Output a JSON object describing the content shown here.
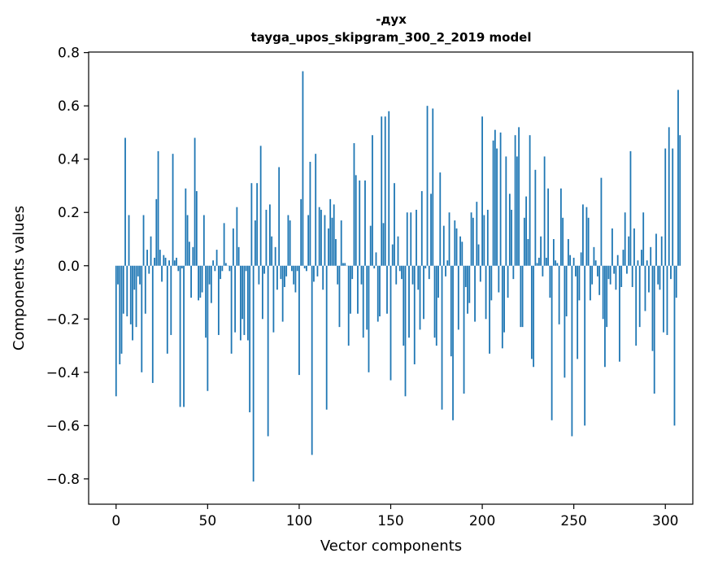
{
  "chart_data": {
    "type": "bar",
    "title": "-дух",
    "subtitle": "tayga_upos_skipgram_300_2_2019 model",
    "xlabel": "Vector components",
    "ylabel": "Components values",
    "xlim": [
      -15,
      315
    ],
    "ylim": [
      -0.895,
      0.802
    ],
    "xticks": [
      0,
      50,
      100,
      150,
      200,
      250,
      300
    ],
    "xtick_labels": [
      "0",
      "50",
      "100",
      "150",
      "200",
      "250",
      "300"
    ],
    "yticks": [
      -0.8,
      -0.6,
      -0.4,
      -0.2,
      0.0,
      0.2,
      0.4,
      0.6,
      0.8
    ],
    "ytick_labels": [
      "−0.8",
      "−0.6",
      "−0.4",
      "−0.2",
      "0.0",
      "0.2",
      "0.4",
      "0.6",
      "0.8"
    ],
    "bar_color": "#1f77b4",
    "values": [
      -0.49,
      -0.07,
      -0.37,
      -0.33,
      -0.18,
      0.48,
      -0.19,
      0.19,
      -0.22,
      -0.28,
      -0.09,
      -0.23,
      -0.04,
      -0.07,
      -0.4,
      0.19,
      -0.18,
      0.06,
      -0.03,
      0.11,
      -0.44,
      0.03,
      0.25,
      0.43,
      0.06,
      -0.06,
      0.04,
      0.03,
      -0.33,
      0.02,
      -0.26,
      0.42,
      0.02,
      0.03,
      -0.02,
      -0.53,
      -0.01,
      -0.53,
      0.29,
      0.19,
      0.09,
      -0.12,
      0.07,
      0.48,
      0.28,
      -0.13,
      -0.12,
      -0.1,
      0.19,
      -0.27,
      -0.47,
      -0.07,
      -0.14,
      0.02,
      -0.02,
      0.06,
      -0.26,
      -0.05,
      -0.02,
      0.16,
      0.01,
      0.0,
      -0.02,
      -0.33,
      0.14,
      -0.25,
      0.22,
      0.07,
      -0.28,
      -0.2,
      -0.26,
      -0.02,
      -0.28,
      -0.55,
      0.31,
      -0.81,
      0.17,
      0.31,
      -0.07,
      0.45,
      -0.2,
      -0.03,
      0.21,
      -0.64,
      0.23,
      0.11,
      -0.25,
      0.07,
      -0.09,
      0.37,
      -0.05,
      -0.21,
      -0.08,
      -0.04,
      0.19,
      0.17,
      -0.02,
      -0.07,
      -0.1,
      -0.02,
      -0.41,
      0.25,
      0.73,
      -0.01,
      -0.02,
      0.19,
      0.39,
      -0.71,
      -0.06,
      0.42,
      -0.04,
      0.22,
      0.21,
      -0.09,
      0.19,
      -0.54,
      0.14,
      0.25,
      0.18,
      0.23,
      0.1,
      -0.07,
      -0.23,
      0.17,
      0.01,
      0.01,
      0.0,
      -0.3,
      -0.18,
      -0.05,
      0.46,
      0.34,
      -0.18,
      0.32,
      -0.07,
      -0.27,
      0.32,
      -0.24,
      -0.4,
      0.15,
      0.49,
      -0.01,
      0.05,
      -0.21,
      -0.19,
      0.56,
      0.16,
      0.56,
      -0.18,
      0.58,
      -0.43,
      0.08,
      0.31,
      -0.07,
      0.11,
      -0.02,
      -0.05,
      -0.3,
      -0.49,
      0.2,
      -0.27,
      0.2,
      -0.07,
      -0.37,
      0.21,
      -0.09,
      -0.24,
      0.28,
      -0.2,
      -0.01,
      0.6,
      -0.05,
      0.27,
      0.59,
      -0.27,
      -0.3,
      -0.12,
      0.35,
      -0.54,
      0.15,
      -0.04,
      0.02,
      0.2,
      -0.34,
      -0.58,
      0.17,
      0.14,
      -0.24,
      0.11,
      0.09,
      -0.48,
      -0.08,
      -0.18,
      -0.14,
      0.2,
      0.18,
      -0.21,
      0.24,
      0.08,
      -0.06,
      0.56,
      0.19,
      -0.2,
      0.21,
      -0.33,
      -0.13,
      0.47,
      0.51,
      0.44,
      -0.1,
      0.5,
      -0.31,
      -0.25,
      0.41,
      -0.12,
      0.27,
      0.21,
      -0.05,
      0.49,
      0.41,
      0.52,
      -0.23,
      -0.23,
      0.18,
      0.26,
      0.1,
      0.49,
      -0.35,
      -0.38,
      0.36,
      0.01,
      0.03,
      0.11,
      -0.04,
      0.41,
      0.03,
      0.29,
      -0.12,
      -0.58,
      0.1,
      0.02,
      0.01,
      -0.22,
      0.29,
      0.18,
      -0.42,
      -0.19,
      0.1,
      0.04,
      -0.64,
      0.03,
      -0.04,
      -0.35,
      -0.13,
      0.05,
      0.23,
      -0.6,
      0.22,
      0.18,
      -0.13,
      -0.07,
      0.07,
      0.02,
      -0.04,
      -0.11,
      0.33,
      -0.2,
      -0.38,
      -0.23,
      -0.05,
      -0.07,
      0.14,
      -0.03,
      -0.09,
      0.04,
      -0.36,
      -0.08,
      0.06,
      0.2,
      -0.03,
      0.11,
      0.43,
      -0.08,
      0.14,
      -0.3,
      0.02,
      -0.23,
      0.06,
      0.2,
      -0.17,
      0.02,
      -0.1,
      0.07,
      -0.32,
      -0.48,
      0.12,
      -0.07,
      -0.09,
      0.11,
      -0.25,
      0.44,
      -0.26,
      0.52,
      -0.05,
      0.44,
      -0.6,
      -0.12,
      0.66,
      0.49
    ]
  }
}
